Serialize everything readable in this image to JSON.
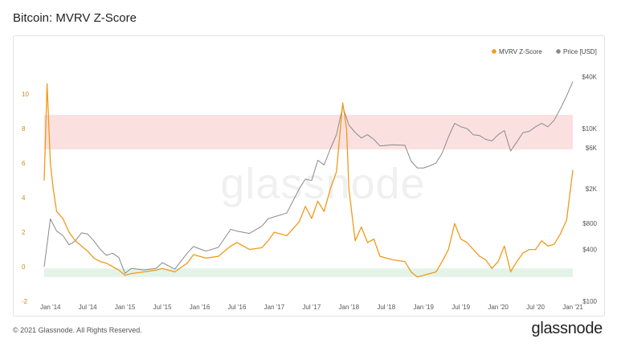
{
  "title": "Bitcoin: MVRV Z-Score",
  "footer": {
    "copyright": "© 2021 Glassnode. All Rights Reserved.",
    "logo": "glassnode"
  },
  "watermark": "glassnode",
  "chart_data": {
    "type": "line",
    "title": "Bitcoin: MVRV Z-Score",
    "legend_position": "top-right",
    "grid": false,
    "x_ticks": [
      "Jan '14",
      "Jul '14",
      "Jan '15",
      "Jul '15",
      "Jan '16",
      "Jul '16",
      "Jan '17",
      "Jul '17",
      "Jan '18",
      "Jul '18",
      "Jan '19",
      "Jul '19",
      "Jan '20",
      "Jul '20",
      "Jan '21"
    ],
    "xlim": [
      "2013-12",
      "2021-01"
    ],
    "left_axis": {
      "ticks": [
        "-2",
        "0",
        "2",
        "4",
        "6",
        "8",
        "10"
      ],
      "ylim": [
        -2,
        11.5
      ]
    },
    "right_axis": {
      "scale": "log",
      "ticks": [
        "$100",
        "$400",
        "$800",
        "$2K",
        "$6K",
        "$10K",
        "$40K"
      ],
      "ylim": [
        100,
        50000
      ]
    },
    "bands": [
      {
        "name": "overvalued",
        "y_from": 6.8,
        "y_to": 8.8,
        "color": "#fbe0e0"
      },
      {
        "name": "undervalued",
        "y_from": -0.6,
        "y_to": -0.1,
        "color": "#e3f3e8"
      }
    ],
    "series": [
      {
        "name": "MVRV Z-Score",
        "axis": "left",
        "color": "#f09a1a",
        "x": [
          "2013-12",
          "2013-12-15",
          "2014-01",
          "2014-01-15",
          "2014-02",
          "2014-03",
          "2014-04",
          "2014-05",
          "2014-06",
          "2014-07",
          "2014-08",
          "2014-09",
          "2014-10",
          "2014-11",
          "2014-12",
          "2015-01",
          "2015-02",
          "2015-04",
          "2015-06",
          "2015-07",
          "2015-09",
          "2015-11",
          "2015-12",
          "2016-02",
          "2016-04",
          "2016-06",
          "2016-07",
          "2016-09",
          "2016-11",
          "2016-12",
          "2017-01",
          "2017-03",
          "2017-05",
          "2017-06",
          "2017-07",
          "2017-08",
          "2017-09",
          "2017-10",
          "2017-11",
          "2017-12",
          "2017-12-20",
          "2018-01",
          "2018-02",
          "2018-03",
          "2018-04",
          "2018-05",
          "2018-06",
          "2018-08",
          "2018-10",
          "2018-11",
          "2018-12",
          "2019-01",
          "2019-02",
          "2019-03",
          "2019-04",
          "2019-05",
          "2019-06",
          "2019-07",
          "2019-08",
          "2019-09",
          "2019-10",
          "2019-11",
          "2019-12",
          "2020-01",
          "2020-02",
          "2020-03",
          "2020-04",
          "2020-05",
          "2020-06",
          "2020-07",
          "2020-08",
          "2020-09",
          "2020-10",
          "2020-11",
          "2020-12",
          "2021-01"
        ],
        "values": [
          5.0,
          10.6,
          6.0,
          4.5,
          3.2,
          2.8,
          2.0,
          1.5,
          1.2,
          0.9,
          0.5,
          0.3,
          0.2,
          0.0,
          -0.2,
          -0.5,
          -0.4,
          -0.3,
          -0.2,
          -0.1,
          -0.3,
          0.2,
          0.7,
          0.5,
          0.6,
          1.2,
          1.4,
          1.0,
          1.1,
          1.5,
          2.0,
          1.8,
          2.6,
          3.5,
          2.8,
          3.8,
          3.2,
          4.5,
          5.5,
          9.5,
          8.0,
          4.5,
          1.5,
          2.3,
          1.4,
          1.6,
          0.6,
          0.4,
          0.3,
          -0.3,
          -0.6,
          -0.5,
          -0.4,
          -0.3,
          0.3,
          1.0,
          2.5,
          1.6,
          1.4,
          1.0,
          0.6,
          0.4,
          -0.1,
          0.3,
          1.2,
          -0.3,
          0.3,
          0.8,
          1.0,
          1.0,
          1.5,
          1.2,
          1.3,
          1.9,
          2.7,
          5.6
        ]
      },
      {
        "name": "Price [USD]",
        "axis": "right",
        "color": "#8a8a8a",
        "x": [
          "2013-12",
          "2014-01",
          "2014-02",
          "2014-03",
          "2014-04",
          "2014-05",
          "2014-06",
          "2014-07",
          "2014-08",
          "2014-09",
          "2014-10",
          "2014-11",
          "2014-12",
          "2015-01",
          "2015-02",
          "2015-04",
          "2015-06",
          "2015-07",
          "2015-09",
          "2015-11",
          "2015-12",
          "2016-02",
          "2016-04",
          "2016-06",
          "2016-07",
          "2016-09",
          "2016-11",
          "2016-12",
          "2017-01",
          "2017-03",
          "2017-05",
          "2017-06",
          "2017-07",
          "2017-08",
          "2017-09",
          "2017-10",
          "2017-11",
          "2017-12",
          "2018-01",
          "2018-02",
          "2018-03",
          "2018-04",
          "2018-05",
          "2018-06",
          "2018-08",
          "2018-10",
          "2018-11",
          "2018-12",
          "2019-01",
          "2019-02",
          "2019-03",
          "2019-04",
          "2019-05",
          "2019-06",
          "2019-07",
          "2019-08",
          "2019-09",
          "2019-10",
          "2019-11",
          "2019-12",
          "2020-01",
          "2020-02",
          "2020-03",
          "2020-04",
          "2020-05",
          "2020-06",
          "2020-07",
          "2020-08",
          "2020-09",
          "2020-10",
          "2020-11",
          "2020-12",
          "2021-01"
        ],
        "values": [
          250,
          900,
          650,
          580,
          450,
          500,
          620,
          600,
          500,
          400,
          340,
          360,
          320,
          210,
          240,
          230,
          240,
          280,
          235,
          360,
          430,
          380,
          420,
          680,
          650,
          610,
          740,
          900,
          950,
          1050,
          2000,
          2600,
          2500,
          4300,
          3800,
          5800,
          8500,
          18000,
          11000,
          9000,
          7800,
          8500,
          7500,
          6300,
          6500,
          6400,
          4200,
          3500,
          3500,
          3700,
          4000,
          5200,
          8000,
          11500,
          10500,
          10000,
          8500,
          8300,
          7500,
          7200,
          8500,
          9500,
          5500,
          7000,
          9000,
          9300,
          10500,
          11500,
          10500,
          12500,
          17000,
          24000,
          35000
        ]
      }
    ]
  }
}
